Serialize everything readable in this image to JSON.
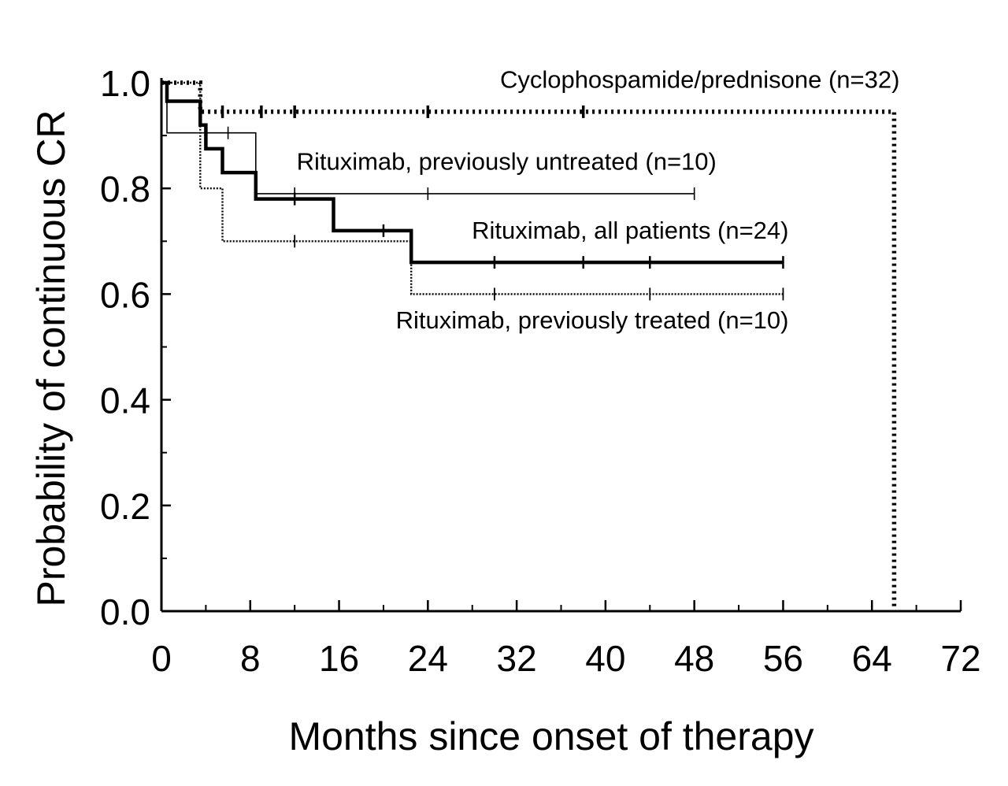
{
  "chart_data": {
    "type": "line",
    "subtype": "kaplan-meier-step",
    "title": "",
    "xlabel": "Months since onset of therapy",
    "ylabel": "Probability of continuous CR",
    "xlim": [
      0,
      72
    ],
    "ylim": [
      0,
      1
    ],
    "xticks": [
      0,
      8,
      16,
      24,
      32,
      40,
      48,
      56,
      64,
      72
    ],
    "xtick_labels": [
      "0",
      "8",
      "16",
      "24",
      "32",
      "40",
      "48",
      "56",
      "64",
      "72"
    ],
    "yticks": [
      0,
      0.2,
      0.4,
      0.6,
      0.8,
      1.0
    ],
    "ytick_labels": [
      "0.0",
      "0.2",
      "0.4",
      "0.6",
      "0.8",
      "1.0"
    ],
    "grid": false,
    "series": [
      {
        "name": "Cyclophospamide/prednisone (n=32)",
        "style": "dotted-heavy",
        "color": "#000000",
        "x": [
          0,
          3.5,
          3.5,
          66,
          66
        ],
        "y": [
          1.0,
          1.0,
          0.945,
          0.945,
          0.0
        ],
        "censored": [
          [
            5.5,
            0.945
          ],
          [
            9,
            0.945
          ],
          [
            12,
            0.945
          ],
          [
            24,
            0.945
          ],
          [
            38,
            0.945
          ]
        ]
      },
      {
        "name": "Rituximab, previously untreated (n=10)",
        "style": "thin",
        "color": "#000000",
        "x": [
          0,
          0.5,
          0.5,
          8.5,
          8.5,
          48
        ],
        "y": [
          1.0,
          1.0,
          0.905,
          0.905,
          0.79,
          0.79
        ],
        "censored": [
          [
            6,
            0.905
          ],
          [
            12,
            0.79
          ],
          [
            24,
            0.79
          ],
          [
            48,
            0.79
          ]
        ]
      },
      {
        "name": "Rituximab, all patients (n=24)",
        "style": "thick",
        "color": "#000000",
        "x": [
          0,
          0.5,
          0.5,
          3.5,
          3.5,
          4,
          4,
          5.5,
          5.5,
          8.5,
          8.5,
          15.5,
          15.5,
          22.5,
          22.5,
          56
        ],
        "y": [
          1.0,
          1.0,
          0.965,
          0.965,
          0.92,
          0.92,
          0.875,
          0.875,
          0.83,
          0.83,
          0.78,
          0.78,
          0.72,
          0.72,
          0.66,
          0.66
        ],
        "censored": [
          [
            12,
            0.78
          ],
          [
            20,
            0.72
          ],
          [
            30,
            0.66
          ],
          [
            38,
            0.66
          ],
          [
            44,
            0.66
          ],
          [
            56,
            0.66
          ]
        ]
      },
      {
        "name": "Rituximab, previously treated (n=10)",
        "style": "dotted-thin",
        "color": "#000000",
        "x": [
          0,
          3.5,
          3.5,
          5.5,
          5.5,
          22.5,
          22.5,
          56
        ],
        "y": [
          1.0,
          1.0,
          0.8,
          0.8,
          0.7,
          0.7,
          0.6,
          0.6
        ],
        "censored": [
          [
            12,
            0.7
          ],
          [
            30,
            0.6
          ],
          [
            44,
            0.6
          ],
          [
            56,
            0.6
          ]
        ]
      }
    ],
    "annotations": [
      {
        "text": "Cyclophospamide/prednisone (n=32)",
        "x": 66.5,
        "y": 0.99,
        "anchor": "end"
      },
      {
        "text": "Rituximab, previously untreated (n=10)",
        "x": 50,
        "y": 0.835,
        "anchor": "end"
      },
      {
        "text": "Rituximab, all patients (n=24)",
        "x": 56.5,
        "y": 0.705,
        "anchor": "end"
      },
      {
        "text": "Rituximab, previously treated (n=10)",
        "x": 56.5,
        "y": 0.535,
        "anchor": "end"
      }
    ]
  }
}
